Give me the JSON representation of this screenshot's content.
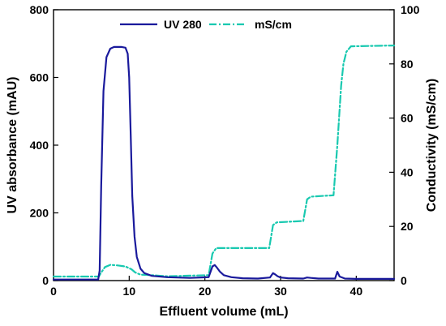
{
  "chart_data": {
    "type": "line",
    "title": "",
    "xlabel": "Effluent volume (mL)",
    "ylabel_left": "UV absorbance (mAU)",
    "ylabel_right": "Conductivity (mS/cm)",
    "xlim": [
      0,
      45
    ],
    "ylim_left": [
      0,
      800
    ],
    "ylim_right": [
      0,
      100
    ],
    "xticks": [
      0,
      10,
      20,
      30,
      40
    ],
    "yticks_left": [
      0,
      200,
      400,
      600,
      800
    ],
    "yticks_right": [
      0,
      20,
      40,
      60,
      80,
      100
    ],
    "grid": false,
    "legend_position": "top",
    "legend": [
      "UV 280",
      "mS/cm"
    ],
    "series": [
      {
        "name": "UV 280",
        "axis": "left",
        "color": "#1a1a9c",
        "style": "solid",
        "x": [
          0,
          5.9,
          6.1,
          6.3,
          6.6,
          7.0,
          7.5,
          8.0,
          8.5,
          9.0,
          9.5,
          9.8,
          10.0,
          10.2,
          10.4,
          10.7,
          11.0,
          11.5,
          12.0,
          13.0,
          15.0,
          18.0,
          20.5,
          21.0,
          21.3,
          21.6,
          22.0,
          22.5,
          23.5,
          25.0,
          27.0,
          28.6,
          29.0,
          29.3,
          29.6,
          30.0,
          31.0,
          33.0,
          33.5,
          34.0,
          35.0,
          37.2,
          37.5,
          37.8,
          38.5,
          40.0,
          45.0
        ],
        "y": [
          3,
          3,
          30,
          280,
          560,
          660,
          685,
          690,
          690,
          690,
          688,
          670,
          600,
          430,
          250,
          130,
          70,
          35,
          22,
          14,
          10,
          8,
          10,
          42,
          46,
          38,
          26,
          16,
          10,
          7,
          6,
          9,
          22,
          18,
          13,
          9,
          7,
          6,
          9,
          8,
          6,
          6,
          26,
          12,
          6,
          5,
          5
        ]
      },
      {
        "name": "mS/cm",
        "axis": "right",
        "color": "#19c9b0",
        "style": "dash-dot",
        "x": [
          0,
          6.0,
          6.3,
          6.8,
          7.5,
          8.5,
          9.5,
          10.3,
          10.8,
          11.5,
          13.0,
          15.0,
          20.5,
          21.0,
          21.5,
          28.5,
          29.0,
          29.5,
          33.0,
          33.5,
          34.0,
          37.0,
          37.5,
          38.0,
          38.3,
          38.7,
          39.3,
          45.0
        ],
        "y": [
          1.5,
          1.5,
          3.0,
          5.0,
          5.8,
          5.6,
          5.2,
          4.2,
          3.0,
          2.2,
          2.0,
          1.6,
          2.0,
          10.0,
          12.0,
          12.0,
          20.5,
          21.5,
          22.0,
          30.0,
          31.0,
          31.5,
          50.0,
          72.0,
          80.0,
          84.5,
          86.5,
          86.8
        ]
      }
    ]
  }
}
